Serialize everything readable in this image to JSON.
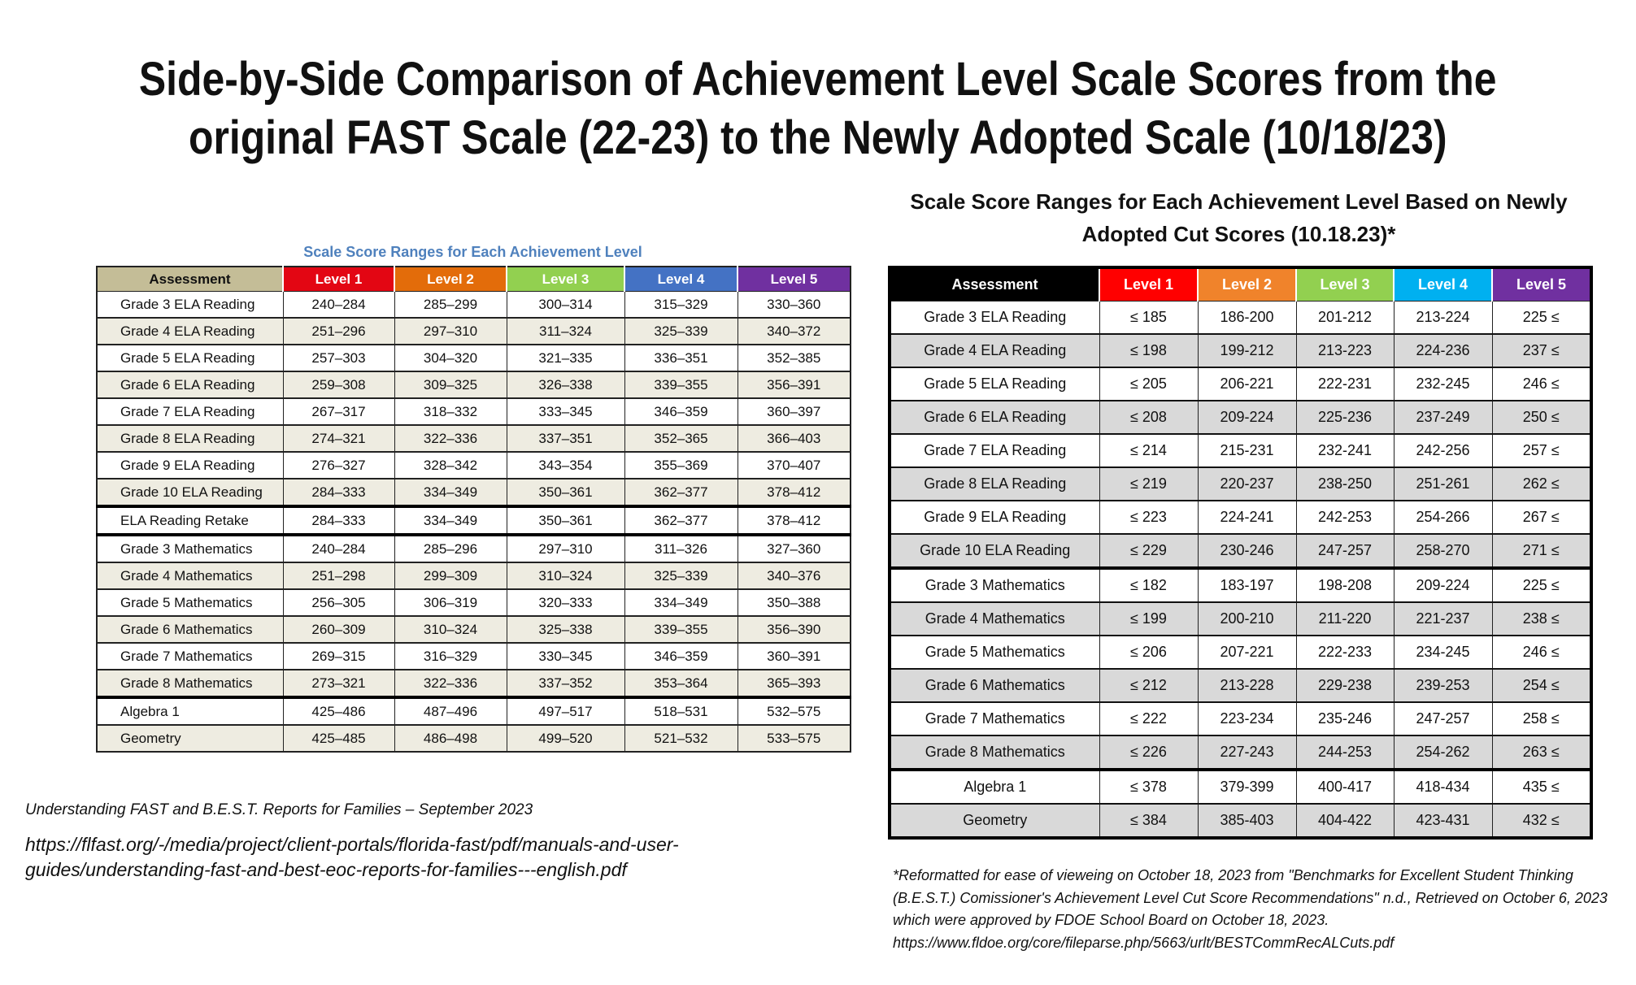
{
  "title": {
    "line1": "Side-by-Side Comparison of Achievement Level Scale Scores from the",
    "line2": "original FAST Scale (22-23) to the Newly Adopted Scale (10/18/23)"
  },
  "left_table": {
    "title": "Scale Score Ranges for Each Achievement Level",
    "header_colors": [
      "#c4bd97",
      "#e30613",
      "#e36c0a",
      "#92d050",
      "#4472c4",
      "#7030a0"
    ],
    "columns": [
      "Assessment",
      "Level 1",
      "Level 2",
      "Level 3",
      "Level 4",
      "Level 5"
    ],
    "rows": [
      [
        "Grade 3 ELA Reading",
        "240–284",
        "285–299",
        "300–314",
        "315–329",
        "330–360"
      ],
      [
        "Grade 4 ELA Reading",
        "251–296",
        "297–310",
        "311–324",
        "325–339",
        "340–372"
      ],
      [
        "Grade 5 ELA Reading",
        "257–303",
        "304–320",
        "321–335",
        "336–351",
        "352–385"
      ],
      [
        "Grade 6 ELA Reading",
        "259–308",
        "309–325",
        "326–338",
        "339–355",
        "356–391"
      ],
      [
        "Grade 7 ELA Reading",
        "267–317",
        "318–332",
        "333–345",
        "346–359",
        "360–397"
      ],
      [
        "Grade 8 ELA Reading",
        "274–321",
        "322–336",
        "337–351",
        "352–365",
        "366–403"
      ],
      [
        "Grade 9 ELA Reading",
        "276–327",
        "328–342",
        "343–354",
        "355–369",
        "370–407"
      ],
      [
        "Grade 10 ELA Reading",
        "284–333",
        "334–349",
        "350–361",
        "362–377",
        "378–412"
      ],
      [
        "ELA Reading Retake",
        "284–333",
        "334–349",
        "350–361",
        "362–377",
        "378–412"
      ],
      [
        "Grade 3 Mathematics",
        "240–284",
        "285–296",
        "297–310",
        "311–326",
        "327–360"
      ],
      [
        "Grade 4 Mathematics",
        "251–298",
        "299–309",
        "310–324",
        "325–339",
        "340–376"
      ],
      [
        "Grade 5 Mathematics",
        "256–305",
        "306–319",
        "320–333",
        "334–349",
        "350–388"
      ],
      [
        "Grade 6 Mathematics",
        "260–309",
        "310–324",
        "325–338",
        "339–355",
        "356–390"
      ],
      [
        "Grade 7 Mathematics",
        "269–315",
        "316–329",
        "330–345",
        "346–359",
        "360–391"
      ],
      [
        "Grade 8 Mathematics",
        "273–321",
        "322–336",
        "337–352",
        "353–364",
        "365–393"
      ],
      [
        "Algebra 1",
        "425–486",
        "487–496",
        "497–517",
        "518–531",
        "532–575"
      ],
      [
        "Geometry",
        "425–485",
        "486–498",
        "499–520",
        "521–532",
        "533–575"
      ]
    ]
  },
  "right_table": {
    "title_line1": "Scale Score Ranges for Each Achievement Level Based on Newly",
    "title_line2": "Adopted Cut Scores (10.18.23)*",
    "header_colors": [
      "#000000",
      "#ff0000",
      "#f0832b",
      "#92d050",
      "#00b0f0",
      "#7030a0"
    ],
    "columns": [
      "Assessment",
      "Level 1",
      "Level 2",
      "Level 3",
      "Level 4",
      "Level 5"
    ],
    "rows": [
      [
        "Grade 3 ELA Reading",
        "≤ 185",
        "186-200",
        "201-212",
        "213-224",
        "225 ≤"
      ],
      [
        "Grade 4 ELA Reading",
        "≤ 198",
        "199-212",
        "213-223",
        "224-236",
        "237 ≤"
      ],
      [
        "Grade 5 ELA Reading",
        "≤ 205",
        "206-221",
        "222-231",
        "232-245",
        "246 ≤"
      ],
      [
        "Grade 6 ELA Reading",
        "≤ 208",
        "209-224",
        "225-236",
        "237-249",
        "250 ≤"
      ],
      [
        "Grade 7 ELA Reading",
        "≤ 214",
        "215-231",
        "232-241",
        "242-256",
        "257 ≤"
      ],
      [
        "Grade 8 ELA Reading",
        "≤ 219",
        "220-237",
        "238-250",
        "251-261",
        "262 ≤"
      ],
      [
        "Grade 9 ELA Reading",
        "≤ 223",
        "224-241",
        "242-253",
        "254-266",
        "267 ≤"
      ],
      [
        "Grade 10 ELA Reading",
        "≤ 229",
        "230-246",
        "247-257",
        "258-270",
        "271 ≤"
      ],
      [
        "Grade 3 Mathematics",
        "≤ 182",
        "183-197",
        "198-208",
        "209-224",
        "225 ≤"
      ],
      [
        "Grade 4 Mathematics",
        "≤ 199",
        "200-210",
        "211-220",
        "221-237",
        "238 ≤"
      ],
      [
        "Grade 5 Mathematics",
        "≤ 206",
        "207-221",
        "222-233",
        "234-245",
        "246 ≤"
      ],
      [
        "Grade 6 Mathematics",
        "≤ 212",
        "213-228",
        "229-238",
        "239-253",
        "254 ≤"
      ],
      [
        "Grade 7 Mathematics",
        "≤ 222",
        "223-234",
        "235-246",
        "247-257",
        "258 ≤"
      ],
      [
        "Grade 8 Mathematics",
        "≤ 226",
        "227-243",
        "244-253",
        "254-262",
        "263 ≤"
      ],
      [
        "Algebra 1",
        "≤ 378",
        "379-399",
        "400-417",
        "418-434",
        "435 ≤"
      ],
      [
        "Geometry",
        "≤ 384",
        "385-403",
        "404-422",
        "423-431",
        "432 ≤"
      ]
    ]
  },
  "left_footnote": {
    "source": "Understanding FAST and B.E.S.T. Reports for Families – September 2023",
    "url": "https://flfast.org/-/media/project/client-portals/florida-fast/pdf/manuals-and-user-guides/understanding-fast-and-best-eoc-reports-for-families---english.pdf"
  },
  "right_footnote": {
    "text": "*Reformatted for ease of vieweing on October 18, 2023 from \"Benchmarks for Excellent Student Thinking (B.E.S.T.) Comissioner's Achievement Level Cut Score Recommendations\" n.d., Retrieved on October 6, 2023 which were approved by FDOE School Board on October 18, 2023.",
    "url": "https://www.fldoe.org/core/fileparse.php/5663/urlt/BESTCommRecALCuts.pdf"
  }
}
